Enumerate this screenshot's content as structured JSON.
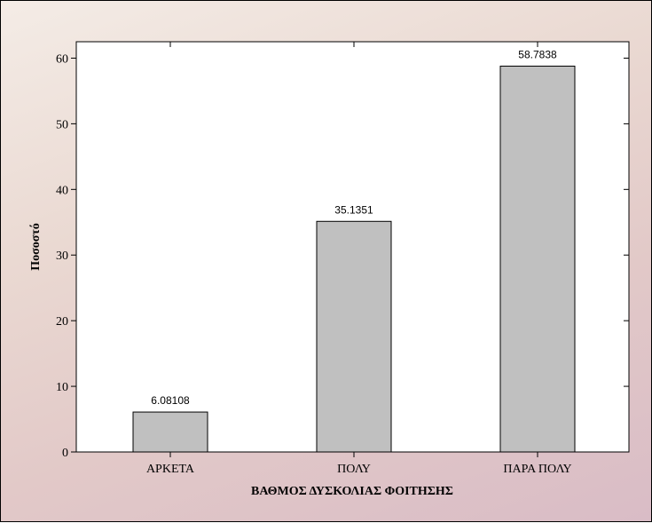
{
  "chart_data": {
    "type": "bar",
    "categories": [
      "ΑΡΚΕΤΑ",
      "ΠΟΛΥ",
      "ΠΑΡΑ ΠΟΛΥ"
    ],
    "values": [
      6.08108,
      35.1351,
      58.7838
    ],
    "value_labels": [
      "6.08108",
      "35.1351",
      "58.7838"
    ],
    "title": "",
    "xlabel": "ΒΑΘΜΟΣ ΔΥΣΚΟΛΙΑΣ ΦΟΙΤΗΣΗΣ",
    "ylabel": "Ποσοστό",
    "ylim": [
      0,
      62.5
    ],
    "yticks": [
      0,
      10,
      20,
      30,
      40,
      50,
      60
    ],
    "grid": false,
    "bar_color": "#c0c0c0",
    "plot_background": "#ffffff"
  }
}
